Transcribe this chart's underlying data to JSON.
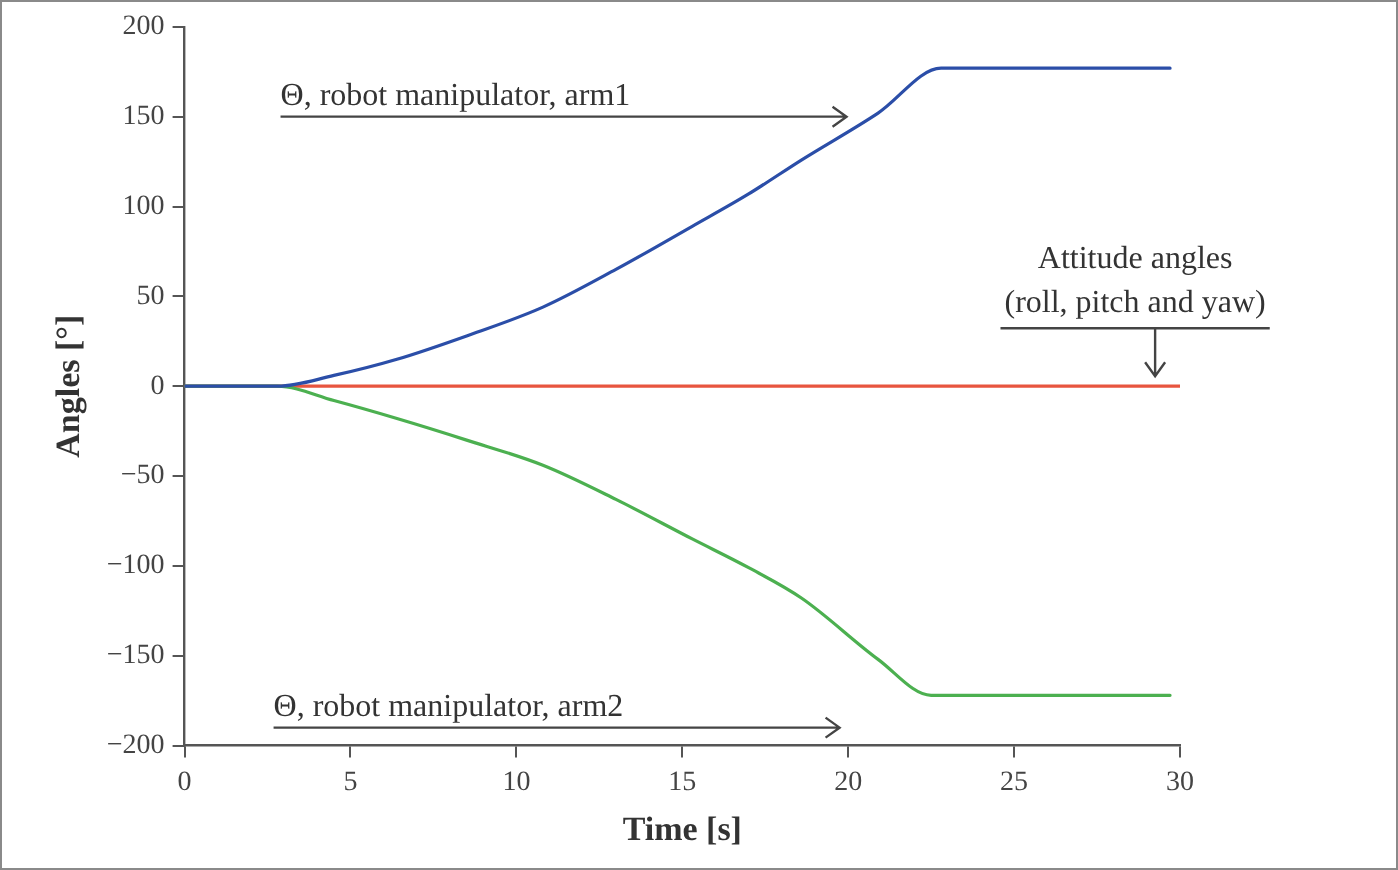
{
  "chart_data": {
    "type": "line",
    "xlabel": "Time [s]",
    "ylabel": "Angles [°]",
    "xlim": [
      0,
      30
    ],
    "xticks": [
      0,
      5,
      10,
      15,
      20,
      25,
      30
    ],
    "ylim": [
      -200,
      200
    ],
    "yticks": [
      {
        "value": -200,
        "label": "−200"
      },
      {
        "value": -150,
        "label": "−150"
      },
      {
        "value": -100,
        "label": "−100"
      },
      {
        "value": -50,
        "label": "−50"
      },
      0,
      50,
      100,
      150,
      200
    ],
    "grid": false,
    "legend": false,
    "marker": "none",
    "line_style": "solid",
    "series": [
      {
        "color": "#2b4ea8",
        "x": [
          0,
          2.8,
          4.5,
          6.4,
          8.5,
          10.8,
          13,
          15.3,
          17,
          18.6,
          20.9,
          22.8,
          29.7
        ],
        "values": [
          0,
          0,
          6,
          15,
          28,
          44,
          65,
          89,
          107,
          126,
          152,
          177,
          177
        ]
      },
      {
        "color": "#4cb050",
        "x": [
          0,
          2.8,
          4.5,
          6.4,
          8.5,
          10.8,
          13,
          15.3,
          17,
          18.6,
          20.9,
          22.5,
          29.7
        ],
        "values": [
          0,
          0,
          -8,
          -18,
          -30,
          -44,
          -63,
          -85,
          -101,
          -118,
          -152,
          -172,
          -172
        ]
      },
      {
        "color": "#e8553f",
        "x": [
          0,
          30
        ],
        "values": [
          0,
          0
        ]
      }
    ],
    "annotations": [
      "Θ, robot manipulator, arm1",
      "Θ, robot manipulator, arm2",
      "Attitude angles\n(roll, pitch and yaw)"
    ]
  }
}
